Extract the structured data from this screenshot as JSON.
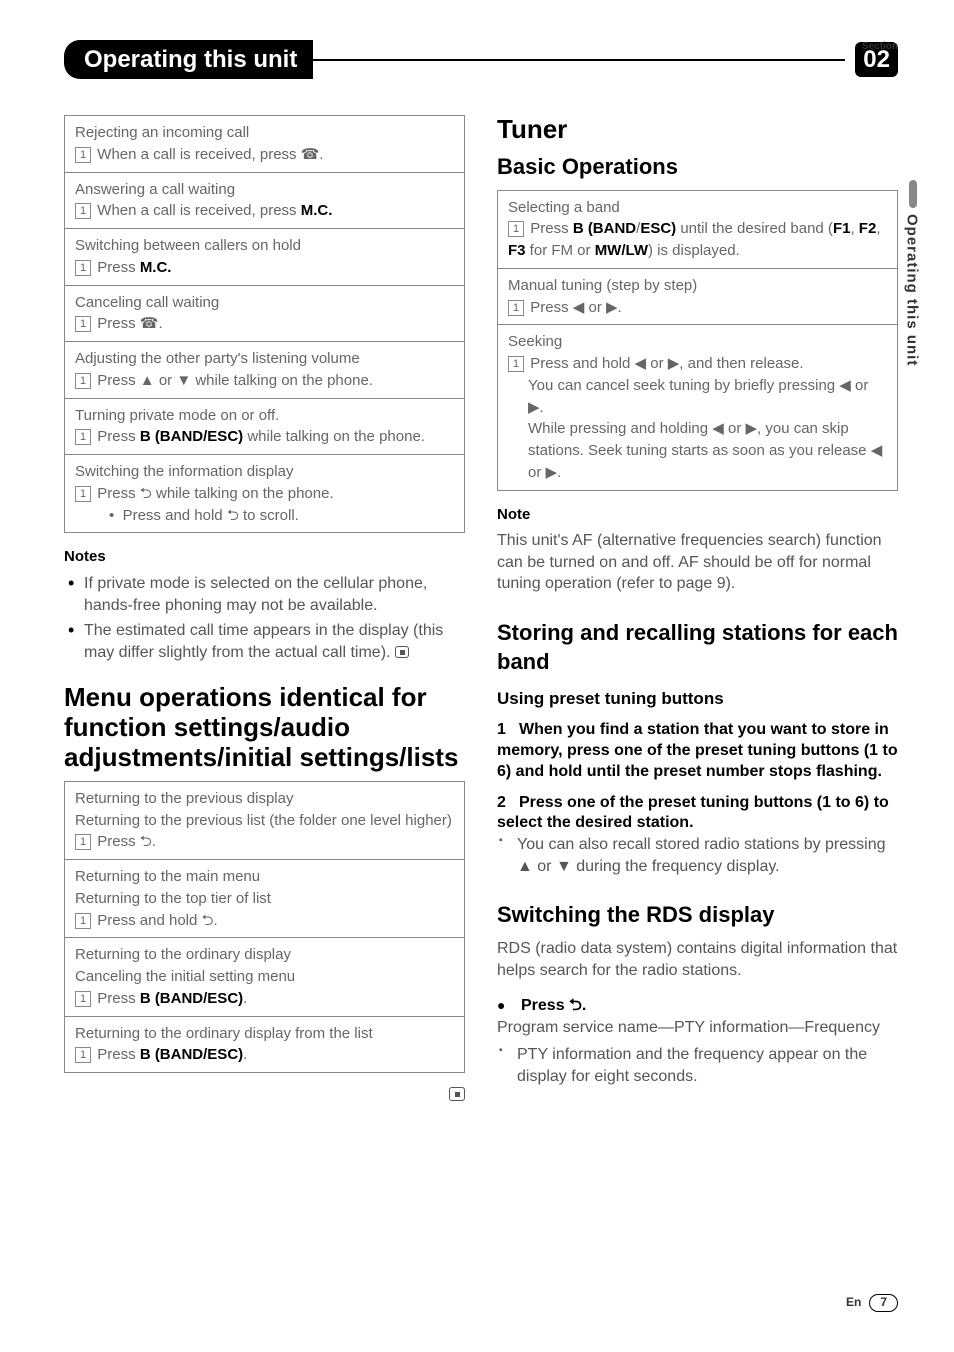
{
  "header": {
    "section_label": "Section",
    "title": "Operating this unit",
    "section_number": "02"
  },
  "side_tab": "Operating this unit",
  "left": {
    "table1": [
      {
        "title": "Rejecting an incoming call",
        "step": "When a call is received, press ☎."
      },
      {
        "title": "Answering a call waiting",
        "step": "When a call is received, press",
        "bold_after": "M.C."
      },
      {
        "title": "Switching between callers on hold",
        "step": "Press",
        "bold_after": "M.C."
      },
      {
        "title": "Canceling call waiting",
        "step": "Press ☎."
      },
      {
        "title": "Adjusting the other party's listening volume",
        "step": "Press ▲ or ▼ while talking on the phone."
      },
      {
        "title": "Turning private mode on or off.",
        "step": "Press",
        "bold_after": "B (BAND/ESC)",
        "tail": " while talking on the phone."
      },
      {
        "title": "Switching the information display",
        "step": "Press ⮌ while talking on the phone.",
        "sub_bullet": "Press and hold ⮌ to scroll."
      }
    ],
    "notes_h": "Notes",
    "notes": [
      "If private mode is selected on the cellular phone, hands-free phoning may not be available.",
      "The estimated call time appears in the display (this may differ slightly from the actual call time)."
    ],
    "h2": "Menu operations identical for function settings/audio adjustments/initial settings/lists",
    "table2": [
      {
        "lines": [
          "Returning to the previous display",
          "Returning to the previous list (the folder one level higher)"
        ],
        "step": "Press ⮌."
      },
      {
        "lines": [
          "Returning to the main menu",
          "Returning to the top tier of list"
        ],
        "step": "Press and hold ⮌."
      },
      {
        "lines": [
          "Returning to the ordinary display",
          "Canceling the initial setting menu"
        ],
        "step": "Press",
        "bold_after": "B (BAND/ESC)",
        "tail": "."
      },
      {
        "lines": [
          "Returning to the ordinary display from the list"
        ],
        "step": "Press",
        "bold_after": "B (BAND/ESC)",
        "tail": "."
      }
    ]
  },
  "right": {
    "h2a": "Tuner",
    "h3a": "Basic Operations",
    "table": [
      {
        "title": "Selecting a band",
        "step_parts": [
          "Press ",
          "B (BAND",
          "/",
          "ESC)",
          " until the desired band (",
          "F1",
          ", ",
          "F2",
          ", ",
          "F3",
          " for FM or ",
          "MW/LW",
          ") is displayed."
        ],
        "bold_idx": [
          1,
          3,
          5,
          7,
          9,
          11
        ]
      },
      {
        "title": "Manual tuning (step by step)",
        "step": "Press ◀ or ▶."
      },
      {
        "title": "Seeking",
        "step": "Press and hold ◀ or ▶, and then release.",
        "extra": [
          "You can cancel seek tuning by briefly pressing ◀ or ▶.",
          "While pressing and holding ◀ or ▶, you can skip stations. Seek tuning starts as soon as you release ◀ or ▶."
        ]
      }
    ],
    "note_h": "Note",
    "note_p": "This unit's AF (alternative frequencies search) function can be turned on and off. AF should be off for normal tuning operation (refer to page 9).",
    "h3b": "Storing and recalling stations for each band",
    "h4b": "Using preset tuning buttons",
    "step1_num": "1",
    "step1": "When you find a station that you want to store in memory, press one of the preset tuning buttons (1 to 6) and hold until the preset number stops flashing.",
    "step2_num": "2",
    "step2": "Press one of the preset tuning buttons (1 to 6) to select the desired station.",
    "step2_sub": "You can also recall stored radio stations by pressing ▲ or ▼ during the frequency display.",
    "h3c": "Switching the RDS display",
    "rds_p": "RDS (radio data system) contains digital information that helps search for the radio stations.",
    "rds_press": "Press ⮌.",
    "rds_line": "Program service name—PTY information—Frequency",
    "rds_sub": "PTY information and the frequency appear on the display for eight seconds."
  },
  "footer": {
    "lang": "En",
    "page": "7"
  }
}
